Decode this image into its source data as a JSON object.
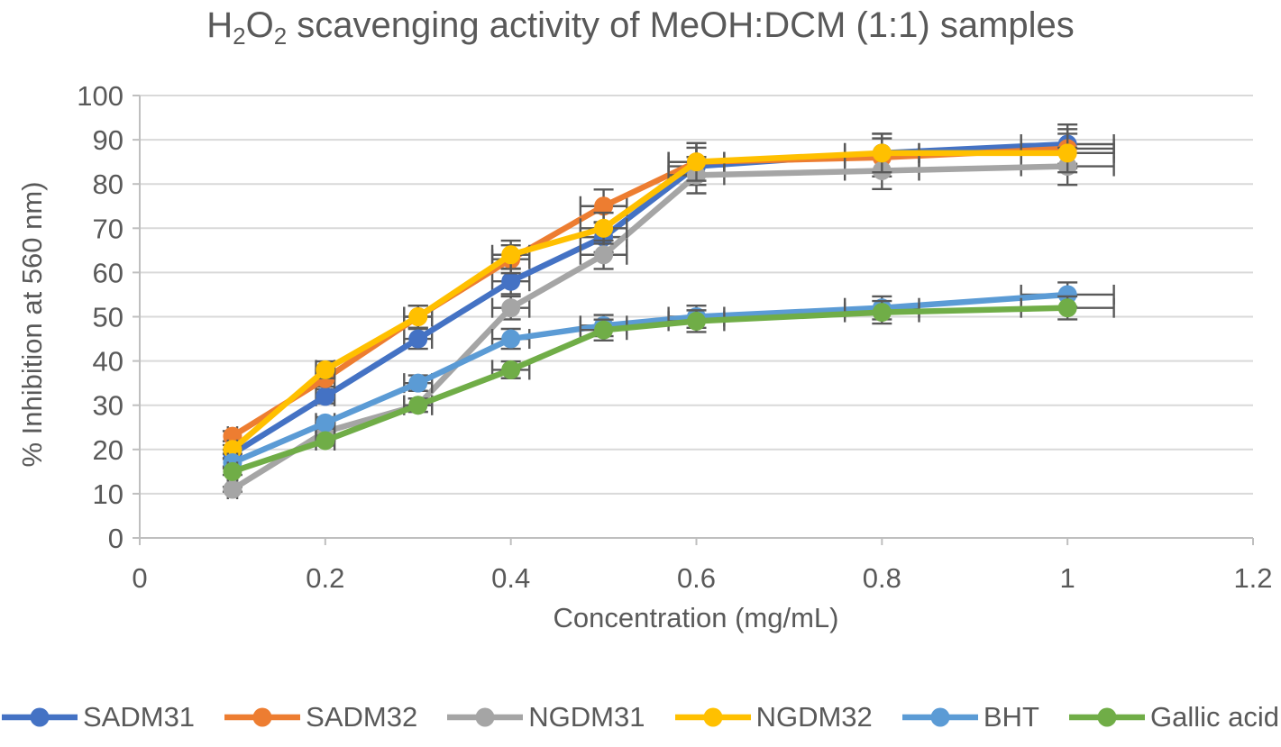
{
  "title": {
    "parts": {
      "t1": "H",
      "s1": "2",
      "t2": "O",
      "s2": "2",
      "t3": " scavenging activity of MeOH:DCM (1:1) samples"
    }
  },
  "chart_data": {
    "type": "line",
    "title": "H2O2 scavenging activity of MeOH:DCM (1:1) samples",
    "xlabel": "Concentration (mg/mL)",
    "ylabel": "% Inhibition at 560 nm)",
    "x": [
      0.1,
      0.2,
      0.3,
      0.4,
      0.5,
      0.6,
      0.8,
      1.0
    ],
    "series": [
      {
        "name": "SADM31",
        "color": "#4472C4",
        "values": [
          19,
          32,
          45,
          58,
          68,
          84,
          87,
          89
        ]
      },
      {
        "name": "SADM32",
        "color": "#ED7D31",
        "values": [
          23,
          36,
          50,
          63,
          75,
          85,
          86,
          88
        ]
      },
      {
        "name": "NGDM31",
        "color": "#A5A5A5",
        "values": [
          11,
          24,
          30,
          52,
          64,
          82,
          83,
          84
        ]
      },
      {
        "name": "NGDM32",
        "color": "#FFC000",
        "values": [
          20,
          38,
          50,
          64,
          70,
          85,
          87,
          87
        ]
      },
      {
        "name": "BHT",
        "color": "#5B9BD5",
        "values": [
          17,
          26,
          35,
          45,
          48,
          50,
          52,
          55
        ]
      },
      {
        "name": "Gallic acid",
        "color": "#70AD47",
        "values": [
          15,
          22,
          30,
          38,
          47,
          49,
          51,
          52
        ]
      }
    ],
    "error_bars": {
      "type": "percentage",
      "percent": 5,
      "directions": "xy"
    },
    "xlim": [
      0,
      1.2
    ],
    "ylim": [
      0,
      100
    ],
    "xtick_labels": [
      "0",
      "0.2",
      "0.4",
      "0.6",
      "0.8",
      "1",
      "1.2"
    ],
    "ytick_labels": [
      "0",
      "10",
      "20",
      "30",
      "40",
      "50",
      "60",
      "70",
      "80",
      "90",
      "100"
    ],
    "grid": "horizontal",
    "legend_position": "bottom",
    "colors": {
      "text": "#595959",
      "gridline": "#D9D9D9",
      "axis_line": "#BFBFBF",
      "error_bar": "#595959"
    }
  }
}
